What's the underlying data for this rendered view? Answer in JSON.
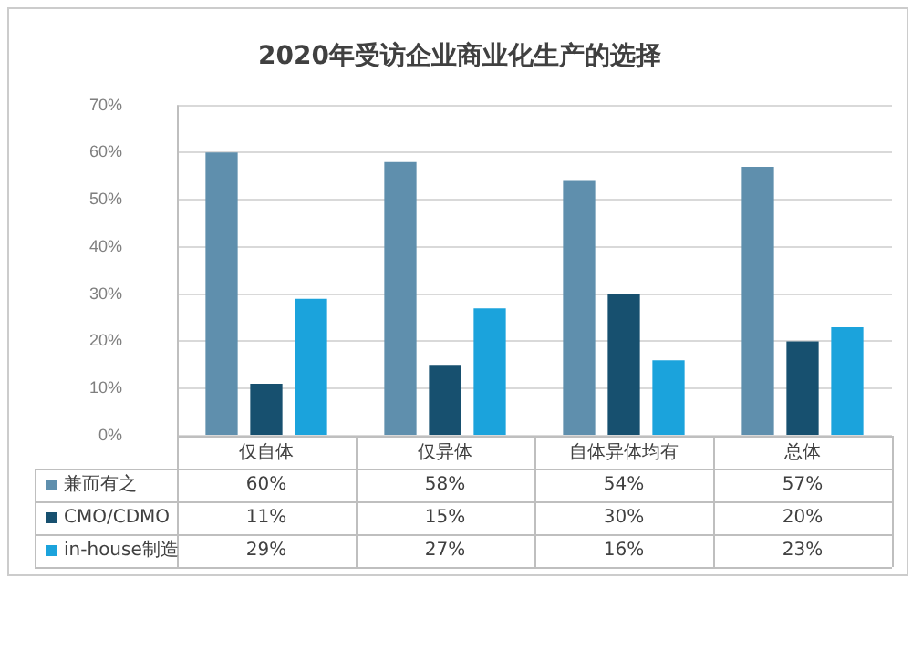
{
  "chart_data": {
    "type": "bar",
    "title": "2020年受访企业商业化生产的选择",
    "categories": [
      "仅自体",
      "仅异体",
      "自体异体均有",
      "总体"
    ],
    "series": [
      {
        "name": "兼而有之",
        "color": "#5f8fad",
        "values": [
          60,
          58,
          54,
          57
        ],
        "value_labels": [
          "60%",
          "58%",
          "54%",
          "57%"
        ]
      },
      {
        "name": "CMO/CDMO",
        "color": "#17506f",
        "values": [
          11,
          15,
          30,
          20
        ],
        "value_labels": [
          "11%",
          "15%",
          "30%",
          "20%"
        ]
      },
      {
        "name": "in-house制造",
        "color": "#1ba3dc",
        "values": [
          29,
          27,
          16,
          23
        ],
        "value_labels": [
          "29%",
          "27%",
          "16%",
          "23%"
        ]
      }
    ],
    "ylim": [
      0,
      70
    ],
    "yticks": [
      {
        "value": 0,
        "label": "0%"
      },
      {
        "value": 10,
        "label": "10%"
      },
      {
        "value": 20,
        "label": "20%"
      },
      {
        "value": 30,
        "label": "30%"
      },
      {
        "value": 40,
        "label": "40%"
      },
      {
        "value": 50,
        "label": "50%"
      },
      {
        "value": 60,
        "label": "60%"
      },
      {
        "value": 70,
        "label": "70%"
      }
    ],
    "grid": "y",
    "legend": "bottom left"
  }
}
